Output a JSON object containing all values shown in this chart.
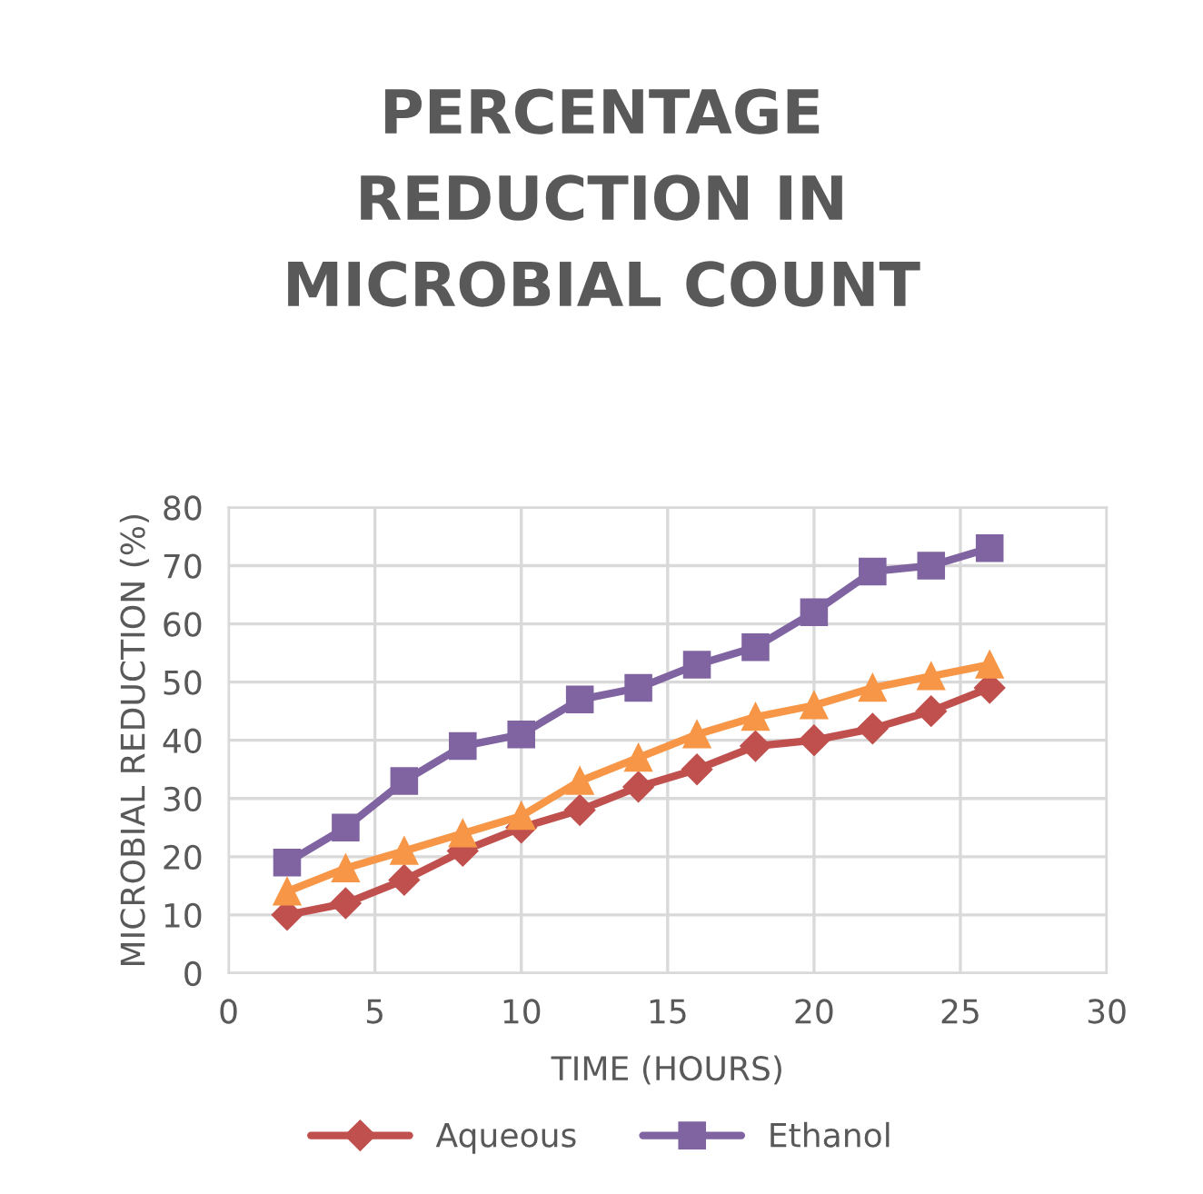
{
  "chart_data": {
    "type": "line",
    "title": "PERCENTAGE\nREDUCTION IN\nMICROBIAL COUNT",
    "xlabel": "TIME (HOURS)",
    "ylabel": "MICROBIAL REDUCTION (%)",
    "x": [
      2,
      4,
      6,
      8,
      10,
      12,
      14,
      16,
      18,
      20,
      22,
      24,
      26
    ],
    "series": [
      {
        "name": "Aqueous",
        "color": "#c0504d",
        "marker": "diamond",
        "values": [
          10,
          12,
          16,
          21,
          25,
          28,
          32,
          35,
          39,
          40,
          42,
          45,
          49
        ]
      },
      {
        "name": "Ethanol",
        "color": "#8064a2",
        "marker": "square",
        "values": [
          19,
          25,
          33,
          39,
          41,
          47,
          49,
          53,
          56,
          62,
          69,
          70,
          73
        ]
      },
      {
        "color": "#f79646",
        "marker": "triangle",
        "values": [
          14,
          18,
          21,
          24,
          27,
          33,
          37,
          41,
          44,
          46,
          49,
          51,
          53
        ]
      }
    ],
    "xlim": [
      0,
      30
    ],
    "xticks": [
      0,
      5,
      10,
      15,
      20,
      25,
      30
    ],
    "ylim": [
      0,
      80
    ],
    "yticks": [
      0,
      10,
      20,
      30,
      40,
      50,
      60,
      70,
      80
    ],
    "grid": true,
    "legend": "bottom",
    "line_style": "solid"
  }
}
